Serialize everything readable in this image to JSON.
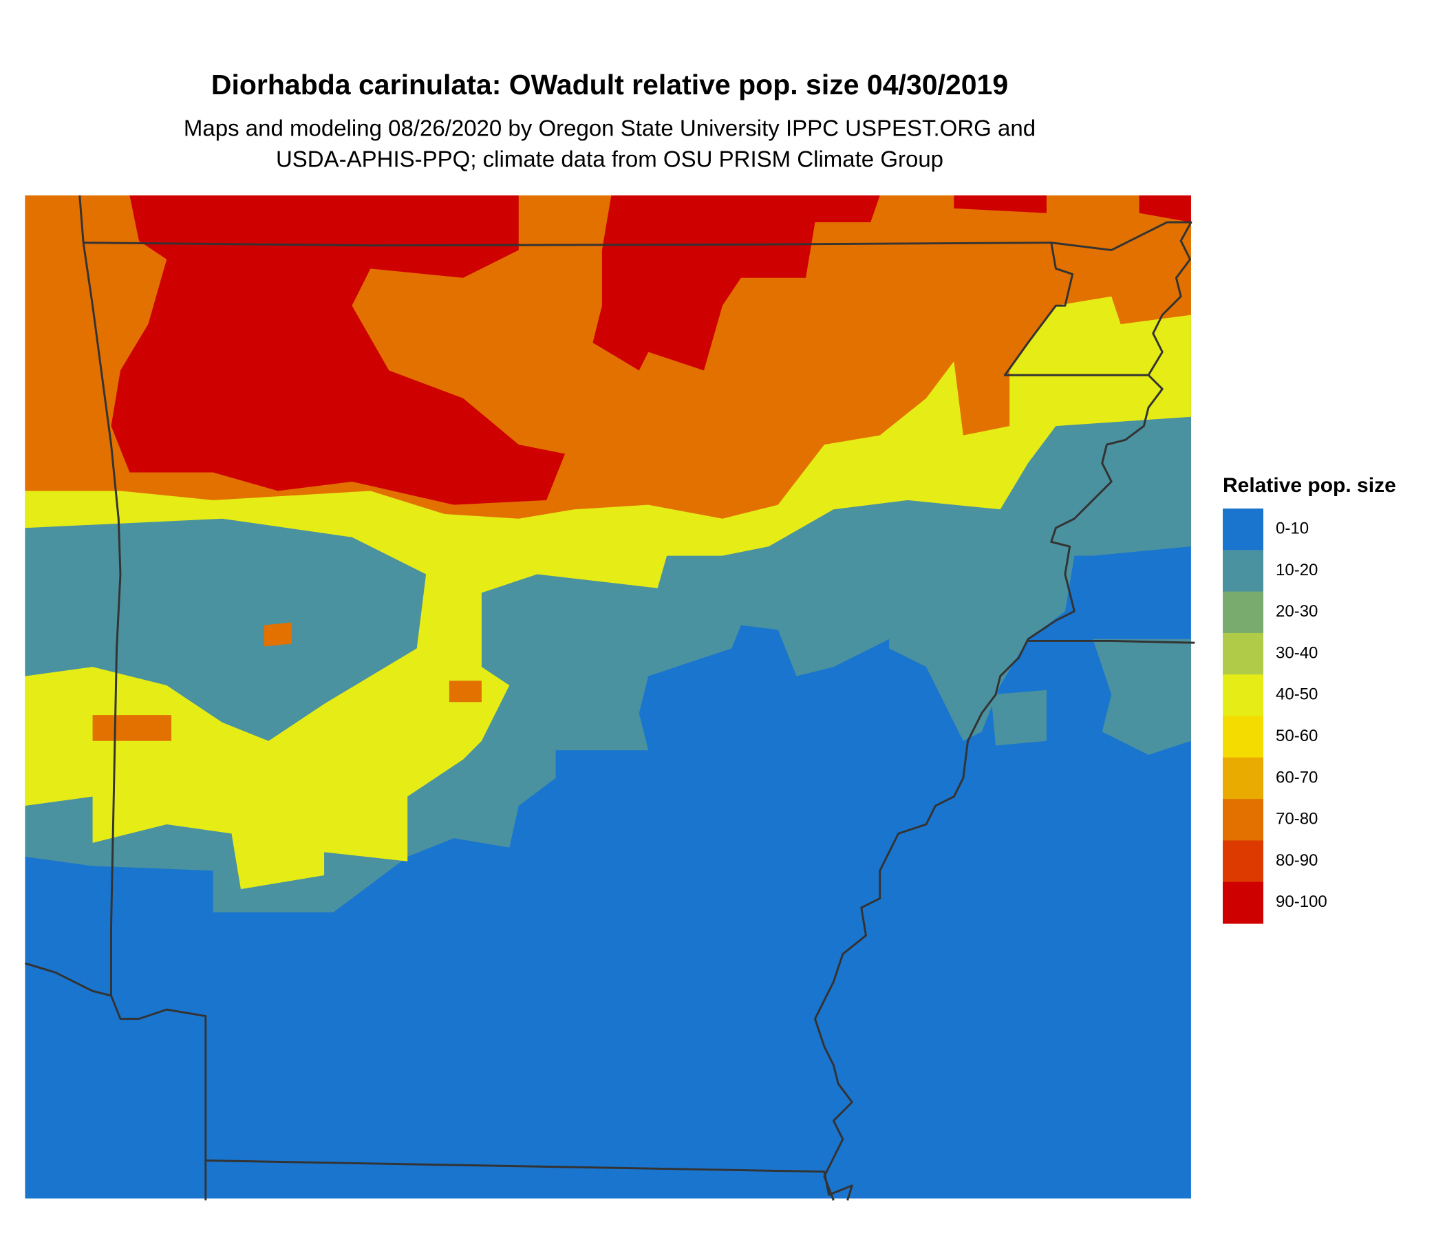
{
  "map": {
    "title": "Diorhabda carinulata: OWadult relative pop. size 04/30/2019",
    "subtitle": [
      "Maps and modeling 08/26/2020 by Oregon State University IPPC USPEST.ORG and",
      "USDA-APHIS-PPQ; climate data from OSU PRISM Climate Group"
    ],
    "legend": {
      "title": "Relative pop. size",
      "items": [
        {
          "label": "0-10",
          "color": "#1a75cf"
        },
        {
          "label": "10-20",
          "color": "#4a929f"
        },
        {
          "label": "20-30",
          "color": "#7aab6e"
        },
        {
          "label": "30-40",
          "color": "#b0cb48"
        },
        {
          "label": "40-50",
          "color": "#e6ec16"
        },
        {
          "label": "50-60",
          "color": "#f5dc00"
        },
        {
          "label": "60-70",
          "color": "#eaab00"
        },
        {
          "label": "70-80",
          "color": "#e27100"
        },
        {
          "label": "80-90",
          "color": "#dd3a00"
        },
        {
          "label": "90-100",
          "color": "#cf0000"
        }
      ]
    }
  }
}
